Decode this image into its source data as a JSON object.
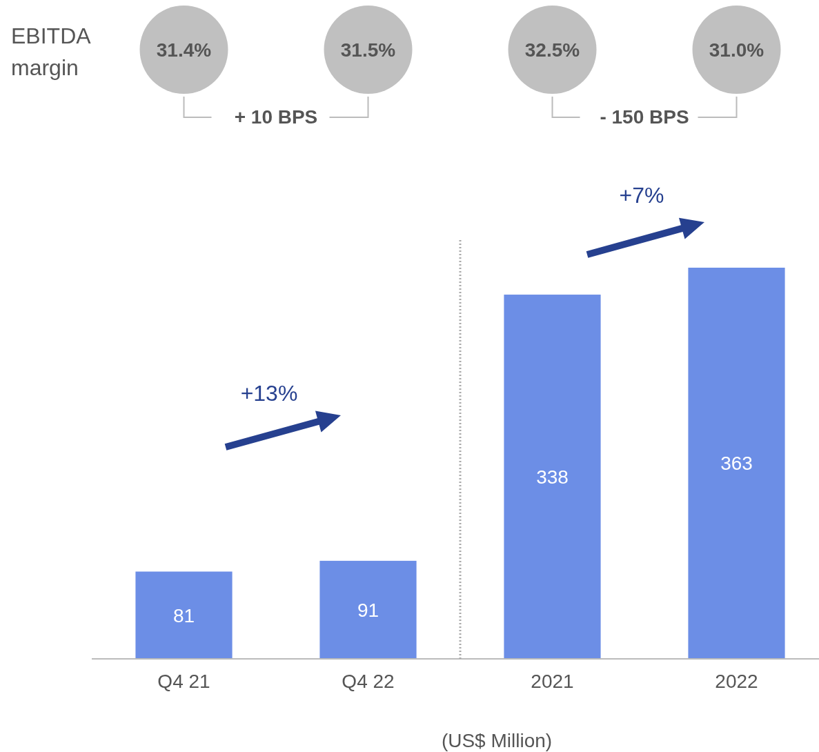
{
  "chart_data": {
    "type": "bar",
    "categories": [
      "Q4 21",
      "Q4 22",
      "2021",
      "2022"
    ],
    "values": [
      81,
      91,
      338,
      363
    ],
    "color": "#6c8ee6",
    "data_labels": true,
    "annotations": [
      "EBITDA margin",
      "31.4%",
      "31.5%",
      "32.5%",
      "31.0%",
      "+ 10 BPS",
      "- 150 BPS",
      "+13%",
      "+7%",
      "(US$ Million)"
    ]
  }
}
